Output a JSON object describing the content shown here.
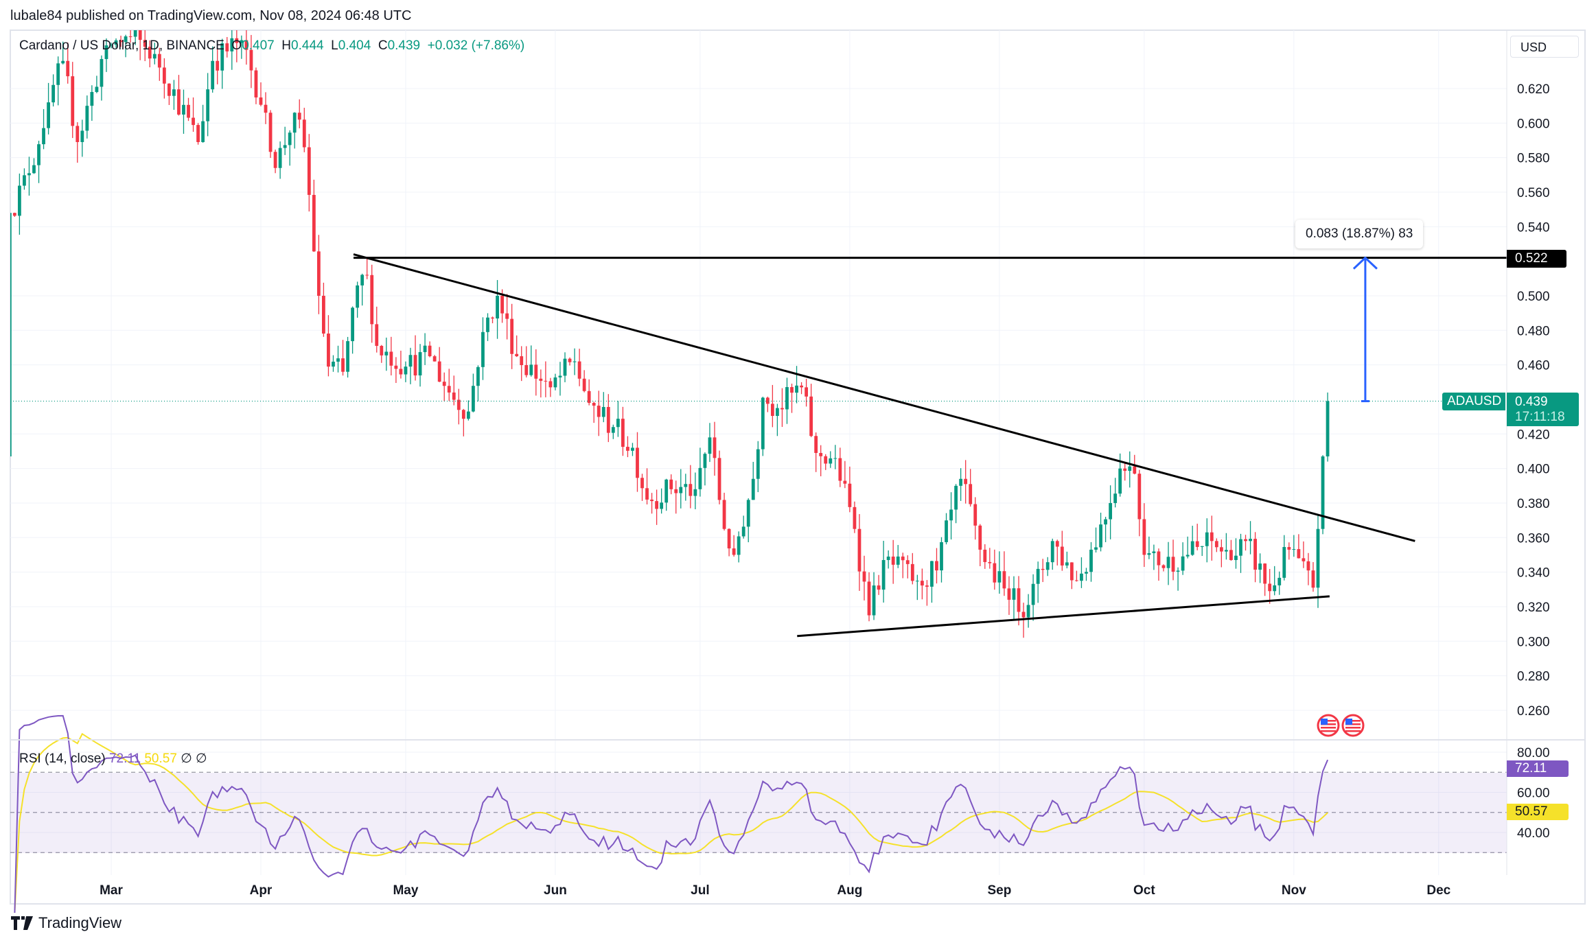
{
  "header": {
    "published": "lubale84 published on TradingView.com, Nov 08, 2024 06:48 UTC"
  },
  "legend": {
    "symbol": "Cardano / US Dollar, 1D, BINANCE",
    "o_label": "O",
    "o": "0.407",
    "h_label": "H",
    "h": "0.444",
    "l_label": "L",
    "l": "0.404",
    "c_label": "C",
    "c": "0.439",
    "change": "+0.032 (+7.86%)"
  },
  "currency": "USD",
  "tags": {
    "resistance": "0.522",
    "symbol": "ADAUSD",
    "last": "0.439",
    "countdown": "17:11:18",
    "rsi": "72.11",
    "rsi_ma": "50.57"
  },
  "measure": {
    "label": "0.083 (18.87%) 83",
    "from": 0.439,
    "to": 0.522,
    "day": 259.8
  },
  "rsi_legend": {
    "title": "RSI (14, close)",
    "value": "72.11",
    "ma": "50.57",
    "na1": "∅",
    "na2": "∅"
  },
  "footer": {
    "brand": "TradingView"
  },
  "colors": {
    "up": "#089981",
    "down": "#f23645",
    "rsi": "#7e57c2",
    "rsi_ma": "#f5e12a",
    "measure": "#2962ff"
  },
  "chart_data": {
    "type": "candlestick",
    "title": "Cardano / US Dollar, 1D, BINANCE",
    "x_unit": "days since Mar 1 2024",
    "ylim": [
      0.25,
      0.654
    ],
    "y_ticks": [
      "0.620",
      "0.600",
      "0.580",
      "0.560",
      "0.540",
      "0.500",
      "0.480",
      "0.460",
      "0.420",
      "0.400",
      "0.380",
      "0.360",
      "0.340",
      "0.320",
      "0.300",
      "0.280",
      "0.260"
    ],
    "x_ticks": [
      {
        "label": "Mar",
        "day": 0
      },
      {
        "label": "Apr",
        "day": 31
      },
      {
        "label": "May",
        "day": 61
      },
      {
        "label": "Jun",
        "day": 92
      },
      {
        "label": "Jul",
        "day": 122
      },
      {
        "label": "Aug",
        "day": 153
      },
      {
        "label": "Sep",
        "day": 184
      },
      {
        "label": "Oct",
        "day": 214
      },
      {
        "label": "Nov",
        "day": 245
      },
      {
        "label": "Dec",
        "day": 275
      }
    ],
    "close_anchors": [
      [
        -21,
        0.548
      ],
      [
        -17,
        0.571
      ],
      [
        -13,
        0.612
      ],
      [
        -10,
        0.636
      ],
      [
        -7,
        0.589
      ],
      [
        -4,
        0.618
      ],
      [
        -1,
        0.645
      ],
      [
        4,
        0.65
      ],
      [
        9,
        0.64
      ],
      [
        18,
        0.589
      ],
      [
        21,
        0.636
      ],
      [
        27,
        0.648
      ],
      [
        32,
        0.606
      ],
      [
        34,
        0.574
      ],
      [
        38,
        0.606
      ],
      [
        40,
        0.586
      ],
      [
        43,
        0.5
      ],
      [
        45,
        0.459
      ],
      [
        48,
        0.456
      ],
      [
        51,
        0.506
      ],
      [
        53,
        0.512
      ],
      [
        55,
        0.471
      ],
      [
        61,
        0.459
      ],
      [
        66,
        0.465
      ],
      [
        70,
        0.444
      ],
      [
        74,
        0.433
      ],
      [
        77,
        0.479
      ],
      [
        80,
        0.5
      ],
      [
        84,
        0.465
      ],
      [
        91,
        0.447
      ],
      [
        96,
        0.462
      ],
      [
        99,
        0.438
      ],
      [
        104,
        0.424
      ],
      [
        108,
        0.412
      ],
      [
        111,
        0.382
      ],
      [
        116,
        0.388
      ],
      [
        121,
        0.388
      ],
      [
        124,
        0.418
      ],
      [
        127,
        0.365
      ],
      [
        129,
        0.35
      ],
      [
        133,
        0.394
      ],
      [
        135,
        0.441
      ],
      [
        138,
        0.435
      ],
      [
        143,
        0.447
      ],
      [
        146,
        0.409
      ],
      [
        150,
        0.406
      ],
      [
        154,
        0.365
      ],
      [
        157,
        0.315
      ],
      [
        160,
        0.347
      ],
      [
        167,
        0.335
      ],
      [
        171,
        0.341
      ],
      [
        176,
        0.394
      ],
      [
        180,
        0.353
      ],
      [
        186,
        0.324
      ],
      [
        190,
        0.321
      ],
      [
        195,
        0.358
      ],
      [
        200,
        0.335
      ],
      [
        203,
        0.353
      ],
      [
        207,
        0.38
      ],
      [
        209,
        0.4
      ],
      [
        212,
        0.397
      ],
      [
        214,
        0.35
      ],
      [
        217,
        0.344
      ],
      [
        223,
        0.35
      ],
      [
        228,
        0.358
      ],
      [
        232,
        0.347
      ],
      [
        235,
        0.358
      ],
      [
        240,
        0.329
      ],
      [
        244,
        0.353
      ],
      [
        249,
        0.331
      ],
      [
        250,
        0.365
      ],
      [
        251,
        0.407
      ]
    ],
    "last_candle": {
      "day": 252,
      "open": 0.407,
      "high": 0.444,
      "low": 0.404,
      "close": 0.439
    },
    "drawings": {
      "resistance": {
        "price": 0.522,
        "from_day": 50.2
      },
      "descending_trendline": [
        [
          50.2,
          0.524
        ],
        [
          270.1,
          0.358
        ]
      ],
      "ascending_support": [
        [
          142.1,
          0.303
        ],
        [
          252.4,
          0.326
        ]
      ]
    },
    "rsi": {
      "period": 14,
      "ma_period": 14,
      "ylim": [
        20,
        90
      ],
      "bands": [
        30,
        70
      ],
      "y_ticks": [
        "80.00",
        "60.00",
        "40.00"
      ]
    }
  }
}
